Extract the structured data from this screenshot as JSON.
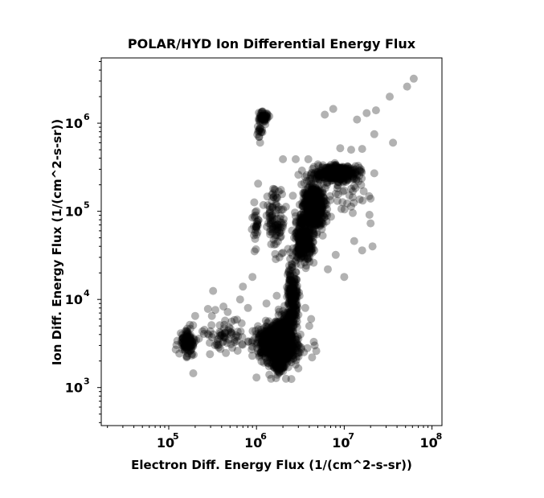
{
  "chart_data": {
    "type": "scatter",
    "title": "POLAR/HYD  Ion Differential Energy Flux",
    "xlabel": "Electron Diff. Energy Flux (1/(cm^2-s-sr))",
    "ylabel": "Ion Diff. Energy Flux (1/(cm^2-s-sr))",
    "xscale": "log",
    "yscale": "log",
    "xlim": [
      17000,
      130000000
    ],
    "ylim": [
      370,
      5500000
    ],
    "x_ticks": [
      {
        "base": "10",
        "exp": "5",
        "value": 100000
      },
      {
        "base": "10",
        "exp": "6",
        "value": 1000000
      },
      {
        "base": "10",
        "exp": "7",
        "value": 10000000
      },
      {
        "base": "10",
        "exp": "8",
        "value": 100000000
      }
    ],
    "y_ticks": [
      {
        "base": "10",
        "exp": "3",
        "value": 1000
      },
      {
        "base": "10",
        "exp": "4",
        "value": 10000
      },
      {
        "base": "10",
        "exp": "5",
        "value": 100000
      },
      {
        "base": "10",
        "exp": "6",
        "value": 1000000
      }
    ],
    "marker_color": "#000000",
    "marker_opacity": 0.3,
    "grid": false,
    "legend": "none",
    "clusters": [
      {
        "x": [
          1000000,
          3000000
        ],
        "y": [
          2000,
          5000
        ],
        "n": 900
      },
      {
        "x": [
          1500000,
          2200000
        ],
        "y": [
          1500,
          4000
        ],
        "n": 500
      },
      {
        "x": [
          1700000,
          2600000
        ],
        "y": [
          2000,
          7000
        ],
        "n": 300
      },
      {
        "x": [
          2200000,
          3000000
        ],
        "y": [
          4000,
          30000
        ],
        "n": 220
      },
      {
        "x": [
          2700000,
          4500000
        ],
        "y": [
          25000,
          90000
        ],
        "n": 300
      },
      {
        "x": [
          3200000,
          6500000
        ],
        "y": [
          60000,
          200000
        ],
        "n": 380
      },
      {
        "x": [
          4500000,
          15000000
        ],
        "y": [
          220000,
          330000
        ],
        "n": 420
      },
      {
        "x": [
          3500000,
          5500000
        ],
        "y": [
          80000,
          200000
        ],
        "n": 120
      },
      {
        "x": [
          130000,
          200000
        ],
        "y": [
          2400,
          5000
        ],
        "n": 110
      },
      {
        "x": [
          220000,
          900000
        ],
        "y": [
          2500,
          6000
        ],
        "n": 70
      },
      {
        "x": [
          1050000,
          1350000
        ],
        "y": [
          1000000,
          1400000
        ],
        "n": 50
      },
      {
        "x": [
          1000000,
          1200000
        ],
        "y": [
          700000,
          1000000
        ],
        "n": 15
      },
      {
        "x": [
          1300000,
          2100000
        ],
        "y": [
          30000,
          200000
        ],
        "n": 100
      },
      {
        "x": [
          900000,
          1100000
        ],
        "y": [
          30000,
          150000
        ],
        "n": 30
      },
      {
        "x": [
          7000000,
          20000000
        ],
        "y": [
          100000,
          220000
        ],
        "n": 30
      }
    ],
    "points": [
      {
        "x": 62000000,
        "y": 3200000
      },
      {
        "x": 52000000,
        "y": 2600000
      },
      {
        "x": 33000000,
        "y": 2000000
      },
      {
        "x": 23000000,
        "y": 1400000
      },
      {
        "x": 18000000,
        "y": 1300000
      },
      {
        "x": 14000000,
        "y": 1100000
      },
      {
        "x": 7500000,
        "y": 1450000
      },
      {
        "x": 6000000,
        "y": 1250000
      },
      {
        "x": 22000000,
        "y": 750000
      },
      {
        "x": 16000000,
        "y": 510000
      },
      {
        "x": 12000000,
        "y": 500000
      },
      {
        "x": 9000000,
        "y": 520000
      },
      {
        "x": 36000000,
        "y": 600000
      },
      {
        "x": 22000000,
        "y": 270000
      },
      {
        "x": 20000000,
        "y": 73000
      },
      {
        "x": 21000000,
        "y": 40000
      },
      {
        "x": 13000000,
        "y": 46000
      },
      {
        "x": 16000000,
        "y": 36000
      },
      {
        "x": 10000000,
        "y": 18000
      },
      {
        "x": 8000000,
        "y": 32000
      },
      {
        "x": 6500000,
        "y": 22000
      },
      {
        "x": 1400000,
        "y": 1200000
      },
      {
        "x": 1100000,
        "y": 600000
      },
      {
        "x": 1550000,
        "y": 180000
      },
      {
        "x": 1900000,
        "y": 175000
      },
      {
        "x": 2600000,
        "y": 150000
      },
      {
        "x": 3000000,
        "y": 260000
      },
      {
        "x": 3300000,
        "y": 290000
      },
      {
        "x": 3900000,
        "y": 390000
      },
      {
        "x": 2800000,
        "y": 390000
      },
      {
        "x": 2000000,
        "y": 390000
      },
      {
        "x": 900000,
        "y": 18000
      },
      {
        "x": 700000,
        "y": 14000
      },
      {
        "x": 650000,
        "y": 10000
      },
      {
        "x": 800000,
        "y": 8000
      },
      {
        "x": 1300000,
        "y": 9000
      },
      {
        "x": 1700000,
        "y": 11000
      },
      {
        "x": 3100000,
        "y": 11000
      },
      {
        "x": 3600000,
        "y": 8000
      },
      {
        "x": 4200000,
        "y": 6000
      },
      {
        "x": 4000000,
        "y": 5000
      },
      {
        "x": 3800000,
        "y": 2800
      },
      {
        "x": 4800000,
        "y": 2600
      },
      {
        "x": 4600000,
        "y": 3000
      },
      {
        "x": 4500000,
        "y": 3300
      },
      {
        "x": 4300000,
        "y": 2200
      },
      {
        "x": 320000,
        "y": 12500
      },
      {
        "x": 200000,
        "y": 6500
      },
      {
        "x": 280000,
        "y": 7800
      },
      {
        "x": 340000,
        "y": 7600
      },
      {
        "x": 420000,
        "y": 8300
      },
      {
        "x": 470000,
        "y": 7200
      },
      {
        "x": 520000,
        "y": 5600
      },
      {
        "x": 600000,
        "y": 5900
      },
      {
        "x": 190000,
        "y": 1450
      },
      {
        "x": 160000,
        "y": 2200
      },
      {
        "x": 120000,
        "y": 2700
      },
      {
        "x": 1000000,
        "y": 1300
      },
      {
        "x": 1400000,
        "y": 1400
      },
      {
        "x": 2500000,
        "y": 1250
      },
      {
        "x": 3000000,
        "y": 1650
      },
      {
        "x": 2300000,
        "y": 1700
      },
      {
        "x": 1800000,
        "y": 1500
      }
    ]
  }
}
